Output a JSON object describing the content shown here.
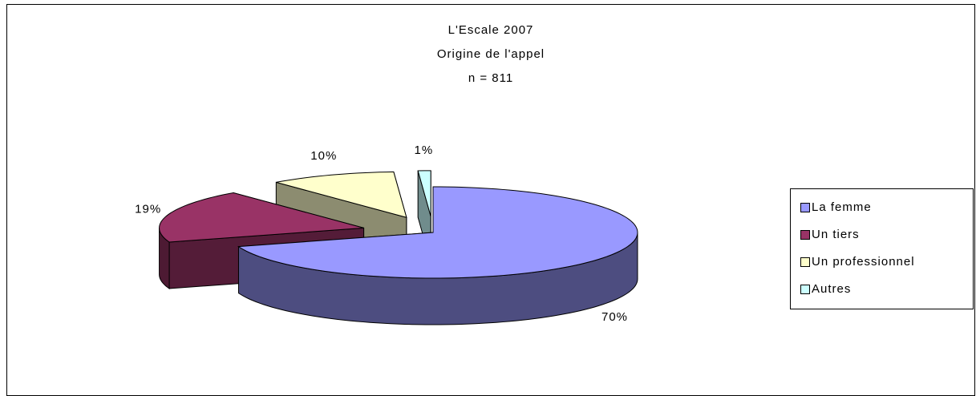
{
  "chart_data": {
    "type": "pie3d",
    "title": "L'Escale 2007",
    "subtitle": "Origine de l'appel",
    "note": "n = 811",
    "categories": [
      "La femme",
      "Un tiers",
      "Un professionnel",
      "Autres"
    ],
    "values": [
      70,
      19,
      10,
      1
    ],
    "value_labels": [
      "70%",
      "19%",
      "10%",
      "1%"
    ],
    "colors": [
      "#9999ff",
      "#993366",
      "#ffffcc",
      "#ccffff"
    ],
    "legend": "right"
  }
}
